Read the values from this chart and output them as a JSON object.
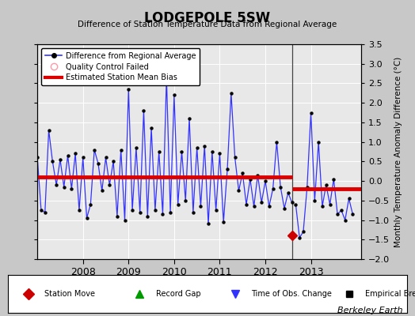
{
  "title": "LODGEPOLE 5SW",
  "subtitle": "Difference of Station Temperature Data from Regional Average",
  "ylabel": "Monthly Temperature Anomaly Difference (°C)",
  "watermark": "Berkeley Earth",
  "ylim": [
    -2,
    3.5
  ],
  "bias1": 0.1,
  "bias2": -0.2,
  "break_x": 2012.583,
  "station_move_x": 2012.583,
  "station_move_y": -1.4,
  "xlim_left": 2007.0,
  "xlim_right": 2014.1,
  "bg_color": "#e0e0e0",
  "plot_bg": "#e8e8e8",
  "line_color": "#3333ff",
  "bias_color": "#dd0000",
  "data": [
    [
      2007.0,
      0.6
    ],
    [
      2007.083,
      -0.75
    ],
    [
      2007.167,
      -0.8
    ],
    [
      2007.25,
      1.3
    ],
    [
      2007.333,
      0.5
    ],
    [
      2007.417,
      -0.1
    ],
    [
      2007.5,
      0.55
    ],
    [
      2007.583,
      -0.15
    ],
    [
      2007.667,
      0.65
    ],
    [
      2007.75,
      -0.2
    ],
    [
      2007.833,
      0.7
    ],
    [
      2007.917,
      -0.75
    ],
    [
      2008.0,
      0.6
    ],
    [
      2008.083,
      -0.95
    ],
    [
      2008.167,
      -0.6
    ],
    [
      2008.25,
      0.8
    ],
    [
      2008.333,
      0.45
    ],
    [
      2008.417,
      -0.25
    ],
    [
      2008.5,
      0.6
    ],
    [
      2008.583,
      -0.1
    ],
    [
      2008.667,
      0.5
    ],
    [
      2008.75,
      -0.9
    ],
    [
      2008.833,
      0.8
    ],
    [
      2008.917,
      -1.0
    ],
    [
      2009.0,
      2.35
    ],
    [
      2009.083,
      -0.75
    ],
    [
      2009.167,
      0.85
    ],
    [
      2009.25,
      -0.8
    ],
    [
      2009.333,
      1.8
    ],
    [
      2009.417,
      -0.9
    ],
    [
      2009.5,
      1.35
    ],
    [
      2009.583,
      -0.75
    ],
    [
      2009.667,
      0.75
    ],
    [
      2009.75,
      -0.85
    ],
    [
      2009.833,
      2.65
    ],
    [
      2009.917,
      -0.8
    ],
    [
      2010.0,
      2.2
    ],
    [
      2010.083,
      -0.6
    ],
    [
      2010.167,
      0.75
    ],
    [
      2010.25,
      -0.5
    ],
    [
      2010.333,
      1.6
    ],
    [
      2010.417,
      -0.8
    ],
    [
      2010.5,
      0.85
    ],
    [
      2010.583,
      -0.65
    ],
    [
      2010.667,
      0.9
    ],
    [
      2010.75,
      -1.1
    ],
    [
      2010.833,
      0.75
    ],
    [
      2010.917,
      -0.75
    ],
    [
      2011.0,
      0.7
    ],
    [
      2011.083,
      -1.05
    ],
    [
      2011.167,
      0.3
    ],
    [
      2011.25,
      2.25
    ],
    [
      2011.333,
      0.6
    ],
    [
      2011.417,
      -0.25
    ],
    [
      2011.5,
      0.2
    ],
    [
      2011.583,
      -0.6
    ],
    [
      2011.667,
      0.05
    ],
    [
      2011.75,
      -0.65
    ],
    [
      2011.833,
      0.15
    ],
    [
      2011.917,
      -0.55
    ],
    [
      2012.0,
      0.0
    ],
    [
      2012.083,
      -0.65
    ],
    [
      2012.167,
      -0.2
    ],
    [
      2012.25,
      1.0
    ],
    [
      2012.333,
      -0.15
    ],
    [
      2012.417,
      -0.7
    ],
    [
      2012.5,
      -0.3
    ],
    [
      2012.583,
      -0.55
    ],
    [
      2012.667,
      -0.6
    ],
    [
      2012.75,
      -1.45
    ],
    [
      2012.833,
      -1.3
    ],
    [
      2012.917,
      -0.15
    ],
    [
      2013.0,
      1.75
    ],
    [
      2013.083,
      -0.5
    ],
    [
      2013.167,
      1.0
    ],
    [
      2013.25,
      -0.65
    ],
    [
      2013.333,
      -0.1
    ],
    [
      2013.417,
      -0.6
    ],
    [
      2013.5,
      0.05
    ],
    [
      2013.583,
      -0.85
    ],
    [
      2013.667,
      -0.75
    ],
    [
      2013.75,
      -1.0
    ],
    [
      2013.833,
      -0.45
    ],
    [
      2013.917,
      -0.85
    ]
  ]
}
